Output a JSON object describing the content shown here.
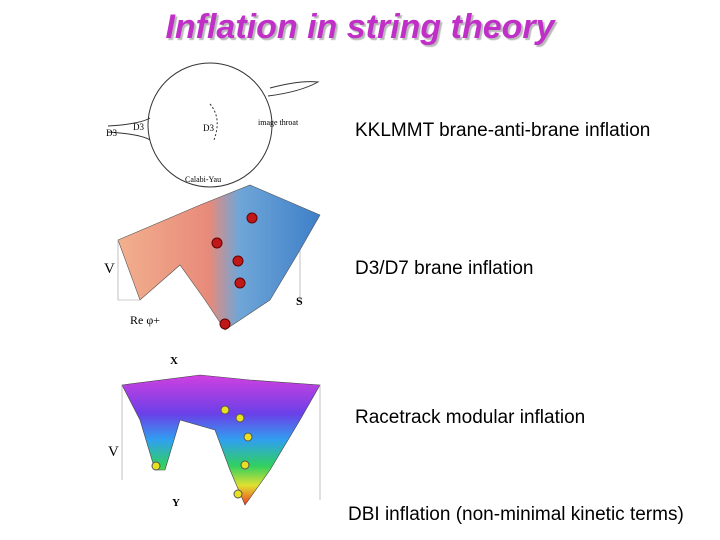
{
  "header": {
    "title": "Inflation in string theory"
  },
  "items": [
    {
      "label": "KKLMMT brane-anti-brane inflation",
      "figure_labels": [
        "D3",
        "D3",
        "D3",
        "image throat",
        "Calabi-Yau"
      ]
    },
    {
      "label": "D3/D7 brane inflation",
      "figure_labels": [
        "V",
        "Re φ+",
        "S"
      ]
    },
    {
      "label": "Racetrack modular inflation",
      "figure_labels": [
        "X",
        "V",
        "Y"
      ]
    },
    {
      "label": "DBI inflation (non-minimal kinetic terms)"
    }
  ]
}
